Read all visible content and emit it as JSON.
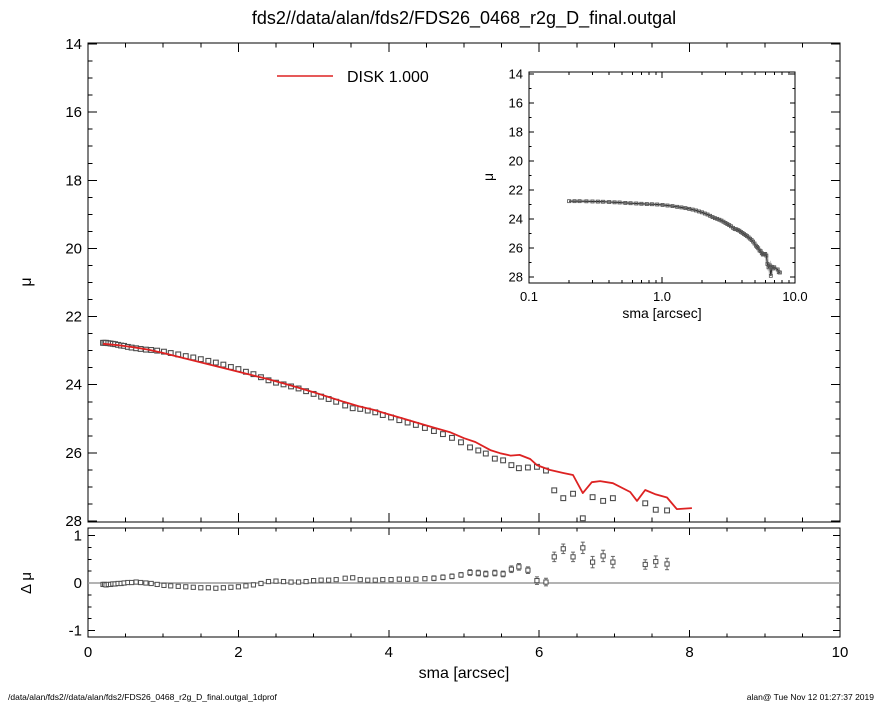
{
  "title": "fds2//data/alan/fds2/FDS26_0468_r2g_D_final.outgal",
  "footer_left": "/data/alan/fds2//data/alan/fds2/FDS26_0468_r2g_D_final.outgal_1dprof",
  "footer_right": "alan@  Tue Nov 12 01:27:37 2019",
  "colors": {
    "model_line": "#dd2222",
    "marker_stroke": "#4d4d4d",
    "marker_fill": "#ffffff",
    "axis": "#000000",
    "zero_line": "#9a9a9a",
    "inset_halo": "#c4c4c4",
    "inset_line": "#2f2f2f"
  },
  "chart_data": {
    "figure": "galaxy 1D surface-brightness profile with DISK model fit and residuals",
    "model_line": {
      "name": "DISK  1.000",
      "color": "#dd2222",
      "points": [
        [
          0.2,
          22.8
        ],
        [
          0.4,
          22.84
        ],
        [
          0.6,
          22.9
        ],
        [
          0.8,
          22.97
        ],
        [
          1.0,
          23.07
        ],
        [
          1.2,
          23.18
        ],
        [
          1.4,
          23.29
        ],
        [
          1.6,
          23.4
        ],
        [
          1.8,
          23.51
        ],
        [
          2.0,
          23.62
        ],
        [
          2.2,
          23.73
        ],
        [
          2.4,
          23.84
        ],
        [
          2.6,
          23.96
        ],
        [
          2.8,
          24.09
        ],
        [
          3.0,
          24.22
        ],
        [
          3.2,
          24.36
        ],
        [
          3.4,
          24.5
        ],
        [
          3.6,
          24.63
        ],
        [
          3.8,
          24.74
        ],
        [
          4.0,
          24.87
        ],
        [
          4.2,
          25.0
        ],
        [
          4.4,
          25.13
        ],
        [
          4.6,
          25.26
        ],
        [
          4.81,
          25.39
        ],
        [
          5.0,
          25.57
        ],
        [
          5.15,
          25.68
        ],
        [
          5.35,
          25.92
        ],
        [
          5.48,
          26.01
        ],
        [
          5.62,
          26.08
        ],
        [
          5.74,
          26.06
        ],
        [
          5.88,
          26.18
        ],
        [
          5.97,
          26.36
        ],
        [
          6.14,
          26.5
        ],
        [
          6.32,
          26.59
        ],
        [
          6.45,
          26.65
        ],
        [
          6.58,
          27.18
        ],
        [
          6.7,
          26.86
        ],
        [
          6.81,
          26.83
        ],
        [
          6.98,
          26.89
        ],
        [
          7.21,
          27.15
        ],
        [
          7.3,
          27.41
        ],
        [
          7.41,
          27.09
        ],
        [
          7.55,
          27.22
        ],
        [
          7.7,
          27.31
        ],
        [
          7.83,
          27.65
        ],
        [
          8.03,
          27.62
        ]
      ]
    },
    "profile_points": [
      [
        0.2,
        22.77
      ],
      [
        0.22,
        22.77
      ],
      [
        0.24,
        22.77
      ],
      [
        0.27,
        22.78
      ],
      [
        0.3,
        22.79
      ],
      [
        0.33,
        22.8
      ],
      [
        0.36,
        22.81
      ],
      [
        0.4,
        22.83
      ],
      [
        0.44,
        22.85
      ],
      [
        0.48,
        22.86
      ],
      [
        0.53,
        22.89
      ],
      [
        0.58,
        22.91
      ],
      [
        0.64,
        22.93
      ],
      [
        0.7,
        22.95
      ],
      [
        0.77,
        22.97
      ],
      [
        0.84,
        22.98
      ],
      [
        0.92,
        23.0
      ],
      [
        1.01,
        23.03
      ],
      [
        1.1,
        23.07
      ],
      [
        1.2,
        23.11
      ],
      [
        1.3,
        23.16
      ],
      [
        1.4,
        23.2
      ],
      [
        1.5,
        23.25
      ],
      [
        1.6,
        23.3
      ],
      [
        1.7,
        23.35
      ],
      [
        1.8,
        23.41
      ],
      [
        1.9,
        23.48
      ],
      [
        2.0,
        23.54
      ],
      [
        2.1,
        23.62
      ],
      [
        2.2,
        23.69
      ],
      [
        2.3,
        23.78
      ],
      [
        2.4,
        23.87
      ],
      [
        2.5,
        23.94
      ],
      [
        2.6,
        23.99
      ],
      [
        2.7,
        24.05
      ],
      [
        2.8,
        24.11
      ],
      [
        2.9,
        24.19
      ],
      [
        3.0,
        24.27
      ],
      [
        3.1,
        24.35
      ],
      [
        3.2,
        24.42
      ],
      [
        3.3,
        24.5
      ],
      [
        3.42,
        24.61
      ],
      [
        3.52,
        24.69
      ],
      [
        3.62,
        24.71
      ],
      [
        3.72,
        24.76
      ],
      [
        3.82,
        24.81
      ],
      [
        3.92,
        24.89
      ],
      [
        4.03,
        24.96
      ],
      [
        4.14,
        25.04
      ],
      [
        4.25,
        25.11
      ],
      [
        4.36,
        25.18
      ],
      [
        4.48,
        25.27
      ],
      [
        4.6,
        25.36
      ],
      [
        4.72,
        25.45
      ],
      [
        4.84,
        25.56
      ],
      [
        4.96,
        25.69
      ],
      [
        5.08,
        25.84
      ],
      [
        5.19,
        25.93
      ],
      [
        5.29,
        26.02
      ],
      [
        5.41,
        26.17
      ],
      [
        5.52,
        26.22
      ],
      [
        5.63,
        26.36
      ],
      [
        5.73,
        26.45
      ],
      [
        5.85,
        26.43
      ],
      [
        5.97,
        26.41
      ],
      [
        6.09,
        26.52
      ],
      [
        6.2,
        27.1
      ],
      [
        6.32,
        27.33
      ],
      [
        6.45,
        27.2
      ],
      [
        6.58,
        27.92
      ],
      [
        6.71,
        27.3
      ],
      [
        6.85,
        27.41
      ],
      [
        6.98,
        27.33
      ],
      [
        7.41,
        27.48
      ],
      [
        7.55,
        27.67
      ],
      [
        7.7,
        27.69
      ]
    ],
    "residuals": [
      [
        0.2,
        -0.03,
        0.01
      ],
      [
        0.22,
        -0.03,
        0.01
      ],
      [
        0.24,
        -0.04,
        0.01
      ],
      [
        0.27,
        -0.03,
        0.01
      ],
      [
        0.3,
        -0.03,
        0.01
      ],
      [
        0.33,
        -0.02,
        0.01
      ],
      [
        0.36,
        -0.02,
        0.01
      ],
      [
        0.4,
        -0.01,
        0.01
      ],
      [
        0.44,
        -0.01,
        0.01
      ],
      [
        0.48,
        0.0,
        0.01
      ],
      [
        0.53,
        0.01,
        0.01
      ],
      [
        0.58,
        0.01,
        0.01
      ],
      [
        0.64,
        0.02,
        0.01
      ],
      [
        0.7,
        0.01,
        0.01
      ],
      [
        0.77,
        0.0,
        0.01
      ],
      [
        0.84,
        -0.01,
        0.01
      ],
      [
        0.92,
        -0.03,
        0.01
      ],
      [
        1.01,
        -0.05,
        0.01
      ],
      [
        1.1,
        -0.06,
        0.01
      ],
      [
        1.2,
        -0.07,
        0.02
      ],
      [
        1.3,
        -0.08,
        0.02
      ],
      [
        1.4,
        -0.09,
        0.02
      ],
      [
        1.5,
        -0.1,
        0.02
      ],
      [
        1.6,
        -0.1,
        0.02
      ],
      [
        1.7,
        -0.11,
        0.02
      ],
      [
        1.8,
        -0.1,
        0.02
      ],
      [
        1.9,
        -0.09,
        0.02
      ],
      [
        2.0,
        -0.08,
        0.02
      ],
      [
        2.1,
        -0.06,
        0.02
      ],
      [
        2.2,
        -0.04,
        0.02
      ],
      [
        2.3,
        -0.01,
        0.02
      ],
      [
        2.4,
        0.03,
        0.02
      ],
      [
        2.5,
        0.04,
        0.02
      ],
      [
        2.6,
        0.03,
        0.02
      ],
      [
        2.7,
        0.02,
        0.02
      ],
      [
        2.8,
        0.02,
        0.02
      ],
      [
        2.9,
        0.03,
        0.02
      ],
      [
        3.0,
        0.05,
        0.03
      ],
      [
        3.1,
        0.06,
        0.03
      ],
      [
        3.2,
        0.06,
        0.03
      ],
      [
        3.3,
        0.07,
        0.03
      ],
      [
        3.42,
        0.1,
        0.03
      ],
      [
        3.52,
        0.11,
        0.03
      ],
      [
        3.62,
        0.07,
        0.03
      ],
      [
        3.72,
        0.06,
        0.03
      ],
      [
        3.82,
        0.06,
        0.03
      ],
      [
        3.92,
        0.07,
        0.03
      ],
      [
        4.03,
        0.07,
        0.04
      ],
      [
        4.14,
        0.08,
        0.04
      ],
      [
        4.25,
        0.08,
        0.04
      ],
      [
        4.36,
        0.08,
        0.04
      ],
      [
        4.48,
        0.09,
        0.04
      ],
      [
        4.6,
        0.1,
        0.05
      ],
      [
        4.72,
        0.12,
        0.05
      ],
      [
        4.84,
        0.14,
        0.05
      ],
      [
        4.96,
        0.17,
        0.05
      ],
      [
        5.08,
        0.22,
        0.06
      ],
      [
        5.19,
        0.21,
        0.06
      ],
      [
        5.29,
        0.19,
        0.06
      ],
      [
        5.41,
        0.21,
        0.06
      ],
      [
        5.52,
        0.19,
        0.06
      ],
      [
        5.63,
        0.29,
        0.07
      ],
      [
        5.73,
        0.34,
        0.07
      ],
      [
        5.85,
        0.27,
        0.07
      ],
      [
        5.97,
        0.05,
        0.08
      ],
      [
        6.09,
        0.02,
        0.08
      ],
      [
        6.2,
        0.55,
        0.1
      ],
      [
        6.32,
        0.72,
        0.1
      ],
      [
        6.45,
        0.55,
        0.1
      ],
      [
        6.58,
        0.74,
        0.12
      ],
      [
        6.71,
        0.44,
        0.12
      ],
      [
        6.85,
        0.57,
        0.12
      ],
      [
        6.98,
        0.44,
        0.12
      ],
      [
        7.41,
        0.39,
        0.1
      ],
      [
        7.55,
        0.45,
        0.12
      ],
      [
        7.7,
        0.4,
        0.12
      ]
    ],
    "panels": {
      "main": {
        "type": "scatter",
        "xlabel": "sma [arcsec]",
        "ylabel": "μ",
        "xlim": [
          0,
          10
        ],
        "ylim": [
          28,
          14
        ],
        "xticks": [
          0,
          2,
          4,
          6,
          8,
          10
        ],
        "yticks": [
          14,
          16,
          18,
          20,
          22,
          24,
          26,
          28
        ],
        "xminor": 0.5,
        "yminor": 0.5,
        "legend_label": "DISK  1.000"
      },
      "inset": {
        "type": "line",
        "xscale": "log",
        "xlabel": "sma [arcsec]",
        "ylabel": "μ",
        "xlim": [
          0.1,
          10
        ],
        "ylim": [
          28,
          14
        ],
        "xticks": [
          0.1,
          1.0,
          10.0
        ],
        "xtick_labels": [
          "0.1",
          "1.0",
          "10.0"
        ],
        "yticks": [
          14,
          16,
          18,
          20,
          22,
          24,
          26,
          28
        ],
        "yminor": 1
      },
      "residual": {
        "type": "scatter",
        "ylabel": "Δ μ",
        "ylim": [
          -1.15,
          1.16
        ],
        "yticks": [
          -1,
          0,
          1
        ],
        "ytick_labels": [
          "-1",
          "0",
          "1"
        ],
        "yminor": 0.25,
        "zero_line": 0
      }
    }
  }
}
